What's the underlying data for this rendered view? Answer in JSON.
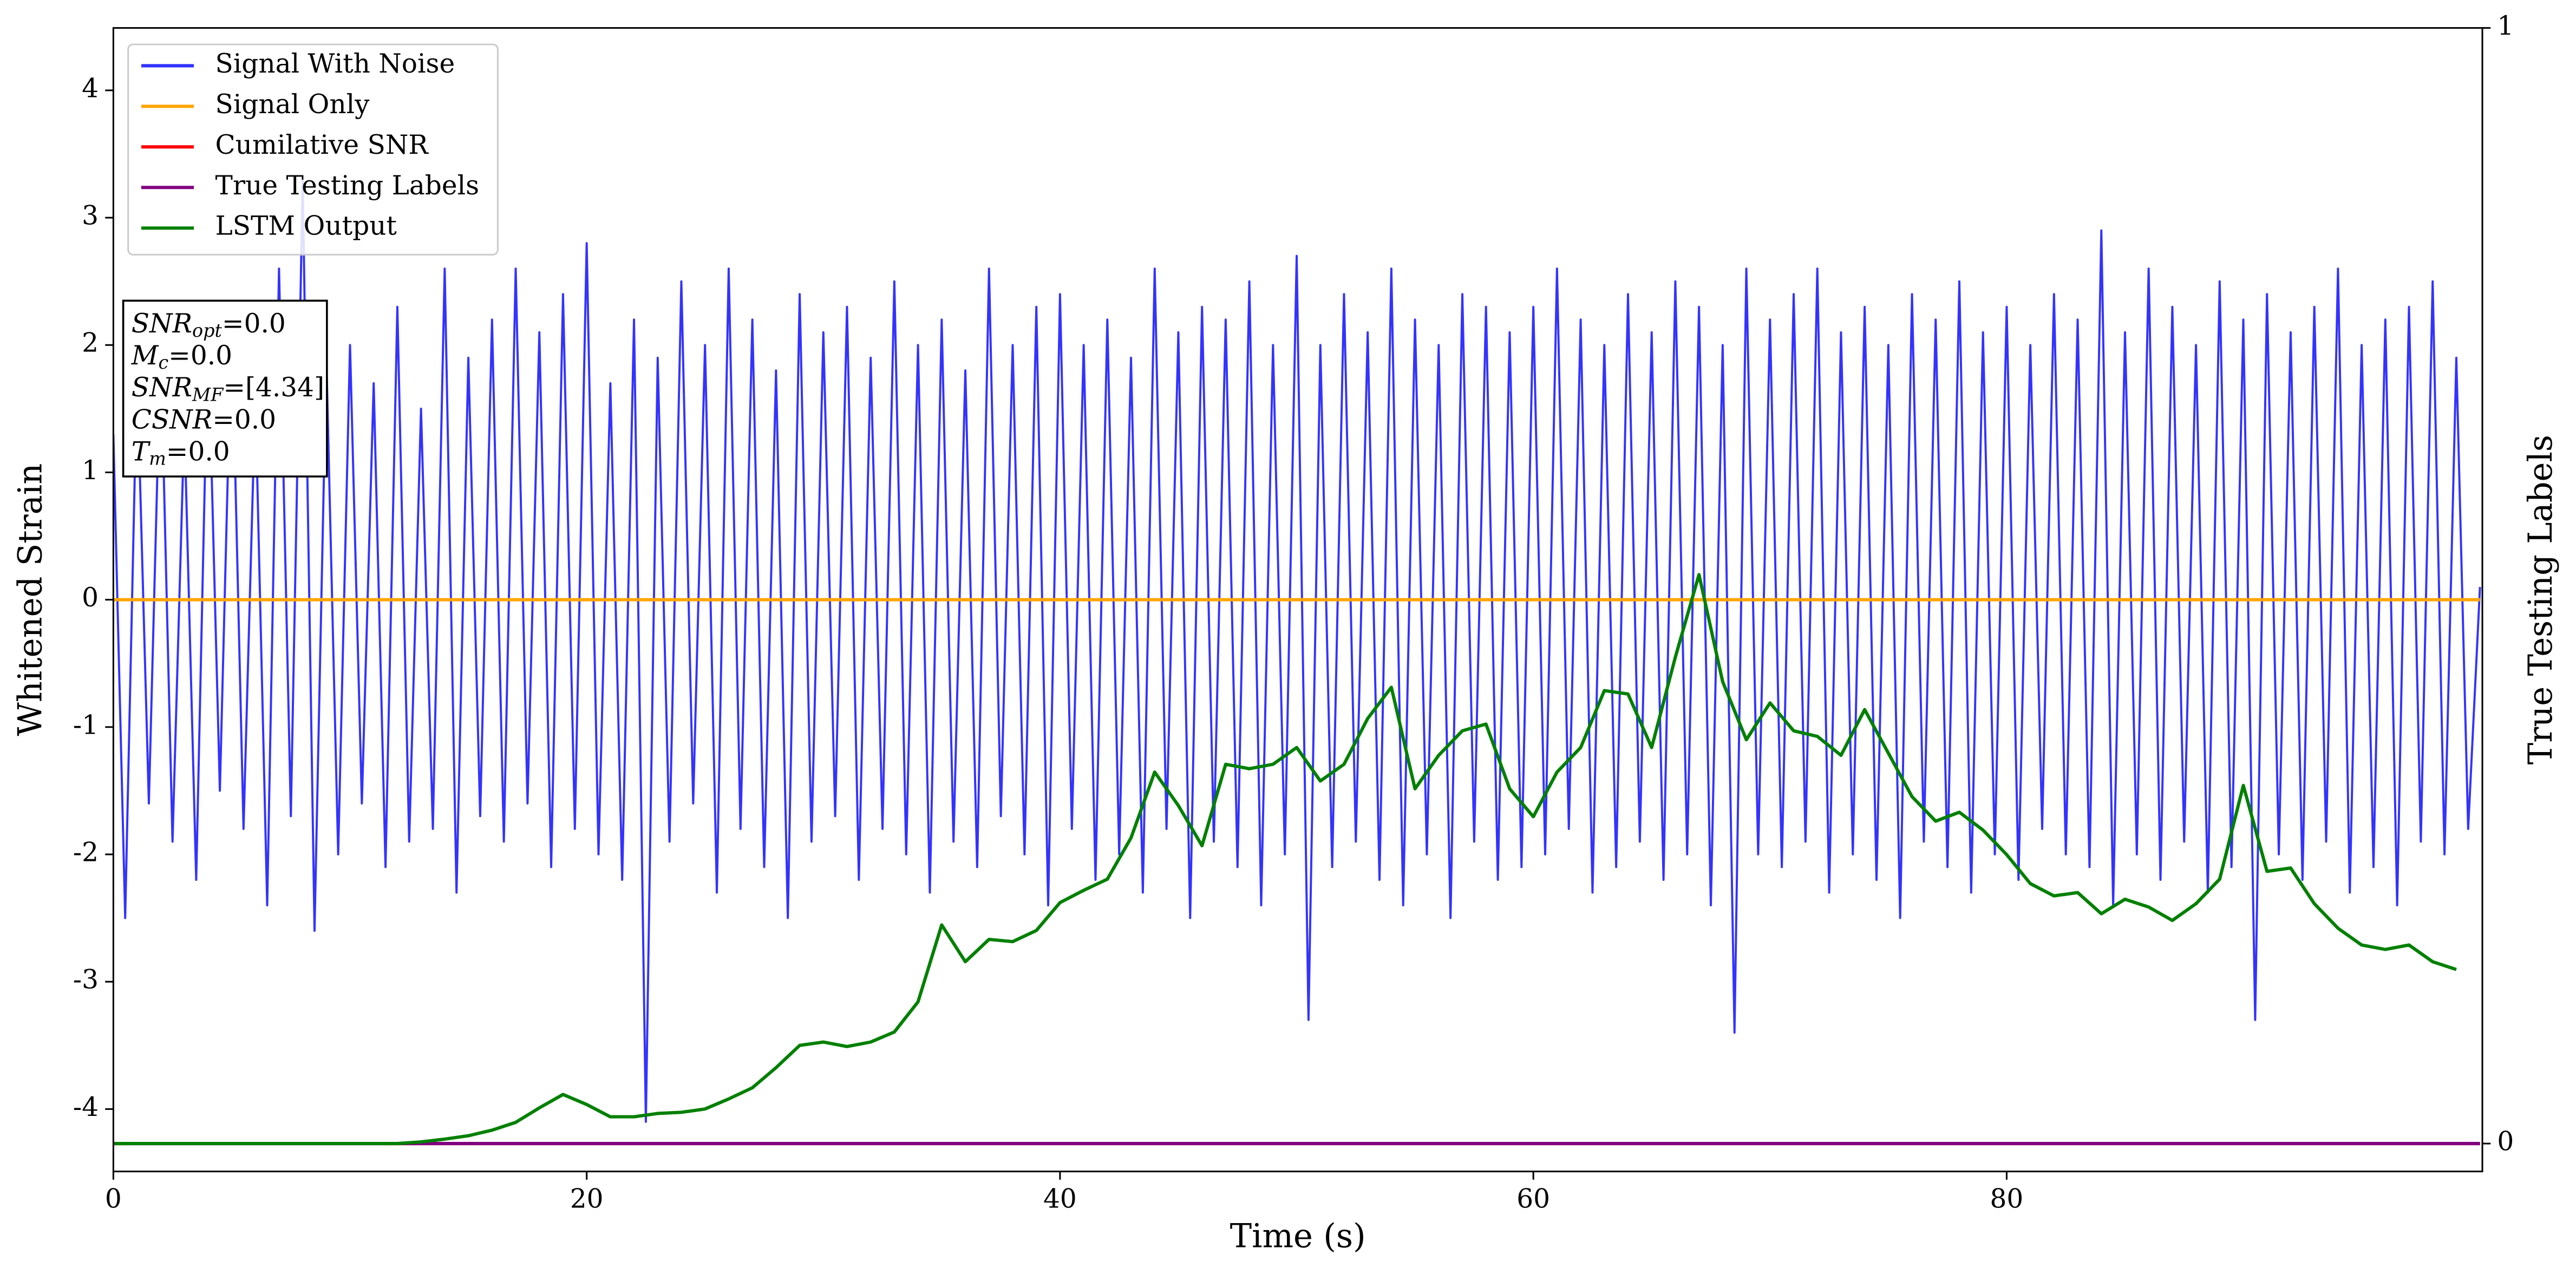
{
  "chart_data": {
    "type": "line",
    "xlabel": "Time (s)",
    "ylabel": "Whitened Strain",
    "y2label": "True Testing Labels",
    "xlim": [
      0,
      100.1
    ],
    "xticks": [
      0,
      20,
      40,
      60,
      80
    ],
    "ylim": [
      -4.49,
      4.49
    ],
    "yticks": [
      -4,
      -3,
      -2,
      -1,
      0,
      1,
      2,
      3,
      4
    ],
    "y2lim": [
      -0.025,
      1
    ],
    "y2ticks": [
      0,
      1
    ],
    "legend": "upper left",
    "annotation": [
      {
        "symbol": "SNR",
        "sub": "opt",
        "text": "=0.0"
      },
      {
        "symbol": "M",
        "sub": "c",
        "text": "=0.0"
      },
      {
        "symbol": "SNR",
        "sub": "MF",
        "text": "=[4.34]"
      },
      {
        "symbol": "CSNR",
        "text": "=0.0"
      },
      {
        "symbol": "T",
        "sub": "m",
        "text": "=0.0"
      }
    ],
    "series": [
      {
        "name": "Signal With Noise",
        "color": "#3333ff",
        "x": [
          0,
          0.5,
          1,
          1.5,
          2,
          2.5,
          3,
          3.5,
          4,
          4.5,
          5,
          5.5,
          6,
          6.5,
          7,
          7.5,
          8,
          8.5,
          9,
          9.5,
          10,
          10.5,
          11,
          11.5,
          12,
          12.5,
          13,
          13.5,
          14,
          14.5,
          15,
          15.5,
          16,
          16.5,
          17,
          17.5,
          18,
          18.5,
          19,
          19.5,
          20,
          20.5,
          21,
          21.5,
          22,
          22.5,
          23,
          23.5,
          24,
          24.5,
          25,
          25.5,
          26,
          26.5,
          27,
          27.5,
          28,
          28.5,
          29,
          29.5,
          30,
          30.5,
          31,
          31.5,
          32,
          32.5,
          33,
          33.5,
          34,
          34.5,
          35,
          35.5,
          36,
          36.5,
          37,
          37.5,
          38,
          38.5,
          39,
          39.5,
          40,
          40.5,
          41,
          41.5,
          42,
          42.5,
          43,
          43.5,
          44,
          44.5,
          45,
          45.5,
          46,
          46.5,
          47,
          47.5,
          48,
          48.5,
          49,
          49.5,
          50,
          50.5,
          51,
          51.5,
          52,
          52.5,
          53,
          53.5,
          54,
          54.5,
          55,
          55.5,
          56,
          56.5,
          57,
          57.5,
          58,
          58.5,
          59,
          59.5,
          60,
          60.5,
          61,
          61.5,
          62,
          62.5,
          63,
          63.5,
          64,
          64.5,
          65,
          65.5,
          66,
          66.5,
          67,
          67.5,
          68,
          68.5,
          69,
          69.5,
          70,
          70.5,
          71,
          71.5,
          72,
          72.5,
          73,
          73.5,
          74,
          74.5,
          75,
          75.5,
          76,
          76.5,
          77,
          77.5,
          78,
          78.5,
          79,
          79.5,
          80,
          80.5,
          81,
          81.5,
          82,
          82.5,
          83,
          83.5,
          84,
          84.5,
          85,
          85.5,
          86,
          86.5,
          87,
          87.5,
          88,
          88.5,
          89,
          89.5,
          90,
          90.5,
          91,
          91.5,
          92,
          92.5,
          93,
          93.5,
          94,
          94.5,
          95,
          95.5,
          96,
          96.5,
          97,
          97.5,
          98,
          98.5,
          99,
          99.5,
          100
        ],
        "values": [
          1.3,
          -2.5,
          1.8,
          -1.6,
          2.0,
          -1.9,
          1.4,
          -2.2,
          2.1,
          -1.5,
          2.2,
          -1.8,
          1.6,
          -2.4,
          2.6,
          -1.7,
          3.3,
          -2.6,
          1.9,
          -2.0,
          2.0,
          -1.6,
          1.7,
          -2.1,
          2.3,
          -1.9,
          1.5,
          -1.8,
          2.6,
          -2.3,
          1.9,
          -1.7,
          2.2,
          -1.9,
          2.6,
          -1.6,
          2.1,
          -2.1,
          2.4,
          -1.8,
          2.8,
          -2.0,
          1.7,
          -2.2,
          2.2,
          -4.1,
          1.9,
          -1.9,
          2.5,
          -1.6,
          2.0,
          -2.3,
          2.6,
          -1.8,
          2.2,
          -2.1,
          1.8,
          -2.5,
          2.4,
          -1.9,
          2.1,
          -1.7,
          2.3,
          -2.2,
          1.9,
          -1.8,
          2.5,
          -2.0,
          2.0,
          -2.3,
          2.2,
          -1.9,
          1.8,
          -2.1,
          2.6,
          -1.7,
          2.0,
          -2.0,
          2.3,
          -2.4,
          2.4,
          -1.8,
          2.0,
          -2.2,
          2.2,
          -2.0,
          1.9,
          -2.3,
          2.6,
          -1.8,
          2.1,
          -2.5,
          2.3,
          -1.9,
          2.2,
          -2.1,
          2.5,
          -2.4,
          2.0,
          -2.0,
          2.7,
          -3.3,
          2.0,
          -2.1,
          2.4,
          -1.9,
          2.1,
          -2.2,
          2.6,
          -2.4,
          2.2,
          -2.0,
          2.0,
          -2.5,
          2.4,
          -1.9,
          2.3,
          -2.2,
          2.1,
          -2.1,
          2.3,
          -2.0,
          2.6,
          -1.8,
          2.2,
          -2.3,
          2.0,
          -2.1,
          2.4,
          -1.9,
          2.1,
          -2.2,
          2.5,
          -2.0,
          2.3,
          -2.4,
          2.0,
          -3.4,
          2.6,
          -2.0,
          2.2,
          -2.1,
          2.4,
          -1.9,
          2.6,
          -2.3,
          2.1,
          -2.0,
          2.3,
          -2.2,
          2.0,
          -2.5,
          2.4,
          -1.9,
          2.2,
          -2.1,
          2.5,
          -2.3,
          2.1,
          -2.0,
          2.3,
          -2.2,
          2.0,
          -1.8,
          2.4,
          -2.0,
          2.2,
          -2.1,
          2.9,
          -2.4,
          2.1,
          -2.0,
          2.6,
          -2.2,
          2.3,
          -1.9,
          2.0,
          -2.3,
          2.5,
          -2.1,
          2.2,
          -3.3,
          2.4,
          -2.0,
          2.1,
          -2.2,
          2.3,
          -1.9,
          2.6,
          -2.3,
          2.0,
          -2.1,
          2.2,
          -2.4,
          2.3,
          -1.9,
          2.5,
          -2.0,
          1.9,
          -1.8,
          0.1
        ]
      },
      {
        "name": "Signal Only",
        "color": "orange",
        "x": [
          0,
          100
        ],
        "values": [
          0,
          0
        ]
      },
      {
        "name": "Cumilative SNR",
        "color": "red",
        "axis": "y2",
        "x": [
          0,
          100
        ],
        "values": [
          0,
          0
        ]
      },
      {
        "name": "True Testing Labels",
        "color": "purple",
        "axis": "y2",
        "x": [
          0,
          100
        ],
        "values": [
          0,
          0
        ]
      },
      {
        "name": "LSTM Output",
        "color": "green",
        "axis": "y2",
        "x": [
          0,
          1,
          2,
          3,
          4,
          5,
          6,
          7,
          8,
          9,
          10,
          11,
          12,
          13,
          14,
          15,
          16,
          17,
          18,
          19,
          20,
          21,
          22,
          23,
          24,
          25,
          26,
          27,
          28,
          29,
          30,
          31,
          32,
          33,
          34,
          35,
          36,
          37,
          38,
          39,
          40,
          41,
          42,
          43,
          44,
          45,
          46,
          47,
          48,
          49,
          50,
          51,
          52,
          53,
          54,
          55,
          56,
          57,
          58,
          59,
          60,
          61,
          62,
          63,
          64,
          65,
          66,
          67,
          68,
          69,
          70,
          71,
          72,
          73,
          74,
          75,
          76,
          77,
          78,
          79,
          80,
          81,
          82,
          83,
          84,
          85,
          86,
          87,
          88,
          89,
          90,
          91,
          92,
          93,
          94,
          95,
          96,
          97,
          98,
          99
        ],
        "values": [
          0,
          0,
          0,
          0,
          0,
          0,
          0,
          0,
          0,
          0,
          0,
          0,
          0,
          0.0015,
          0.004,
          0.007,
          0.012,
          0.019,
          0.032,
          0.044,
          0.035,
          0.024,
          0.024,
          0.027,
          0.028,
          0.031,
          0.04,
          0.05,
          0.068,
          0.088,
          0.091,
          0.087,
          0.091,
          0.1,
          0.127,
          0.196,
          0.163,
          0.183,
          0.181,
          0.191,
          0.216,
          0.227,
          0.237,
          0.274,
          0.333,
          0.303,
          0.267,
          0.34,
          0.336,
          0.34,
          0.355,
          0.325,
          0.34,
          0.381,
          0.409,
          0.318,
          0.348,
          0.37,
          0.376,
          0.318,
          0.293,
          0.333,
          0.355,
          0.406,
          0.403,
          0.355,
          0.436,
          0.51,
          0.414,
          0.362,
          0.395,
          0.37,
          0.365,
          0.348,
          0.389,
          0.35,
          0.311,
          0.289,
          0.297,
          0.281,
          0.259,
          0.233,
          0.222,
          0.225,
          0.206,
          0.219,
          0.212,
          0.2,
          0.215,
          0.237,
          0.321,
          0.244,
          0.247,
          0.215,
          0.193,
          0.178,
          0.174,
          0.178,
          0.163,
          0.156
        ]
      }
    ]
  }
}
